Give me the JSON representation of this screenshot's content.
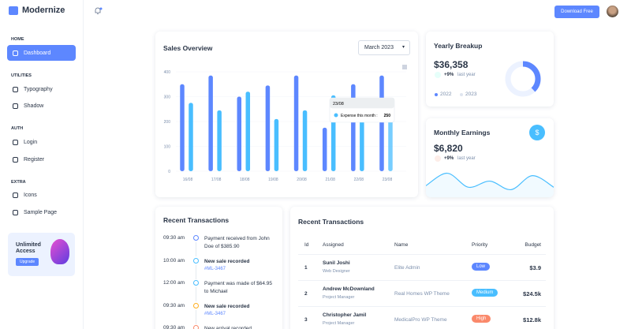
{
  "sidebar": {
    "logo": "Modernize",
    "sections": [
      {
        "title": "HOME",
        "items": [
          "Dashboard"
        ]
      },
      {
        "title": "UTILITIES",
        "items": [
          "Typography",
          "Shadow"
        ]
      },
      {
        "title": "AUTH",
        "items": [
          "Login",
          "Register"
        ]
      },
      {
        "title": "EXTRA",
        "items": [
          "Icons",
          "Sample Page"
        ]
      }
    ],
    "promo": {
      "title": "Unlimited Access",
      "button": "Upgrade"
    }
  },
  "header": {
    "button": "Download Free"
  },
  "sales_overview": {
    "title": "Sales Overview",
    "select": "March 2023",
    "chart": {
      "type": "bar",
      "categories": [
        "16/08",
        "17/08",
        "18/08",
        "19/08",
        "20/08",
        "21/08",
        "22/08",
        "23/08"
      ],
      "series": [
        {
          "color": "#5d87ff",
          "values": [
            350,
            385,
            300,
            345,
            385,
            175,
            350,
            385
          ]
        },
        {
          "name": "Expense this month :",
          "color": "#49beff",
          "values": [
            275,
            245,
            320,
            210,
            245,
            305,
            220,
            250
          ]
        }
      ],
      "ylim": [
        0,
        400
      ],
      "yticks": [
        0,
        100,
        200,
        300,
        400
      ]
    }
  },
  "yearly_breakup": {
    "title": "Yearly Breakup",
    "amount": "$36,358",
    "change": "+9%",
    "change_label": "last year",
    "chart": {
      "type": "donut",
      "categories": [
        "2022",
        "2023"
      ],
      "values": [
        38,
        62
      ],
      "colors": [
        "#5d87ff",
        "#ecf2ff"
      ]
    }
  },
  "monthly_earnings": {
    "title": "Monthly Earnings",
    "icon": "$",
    "amount": "$6,820",
    "change": "+9%",
    "change_label": "last year",
    "chart": {
      "type": "area",
      "values": [
        25,
        66,
        20,
        40,
        12,
        58,
        20
      ],
      "color": "#49beff",
      "ylim": [
        0,
        70
      ]
    }
  },
  "recent_transactions": {
    "title": "Recent Transactions",
    "items": [
      {
        "time": "09:30 am",
        "text": "Payment received from John Doe of $385.90",
        "color": "#5d87ff"
      },
      {
        "time": "10:00 am",
        "text": "New sale recorded",
        "link": "#ML-3467",
        "color": "#49beff"
      },
      {
        "time": "12:00 am",
        "text": "Payment was made of $64.95 to Michael",
        "color": "#49beff"
      },
      {
        "time": "09:30 am",
        "text": "New sale recorded",
        "link": "#ML-3467",
        "color": "#ffae1f"
      },
      {
        "time": "09:30 am",
        "text": "New arrival recorded",
        "color": "#fa896b"
      }
    ]
  },
  "transactions_table": {
    "title": "Recent Transactions",
    "columns": [
      "Id",
      "Assigned",
      "Name",
      "Priority",
      "Budget"
    ],
    "rows": [
      {
        "id": 1,
        "assigned": "Sunil Joshi",
        "role": "Web Designer",
        "name": "Elite Admin",
        "priority": "Low",
        "priority_color": "#5d87ff",
        "budget": "$3.9"
      },
      {
        "id": 2,
        "assigned": "Andrew McDownland",
        "role": "Project Manager",
        "name": "Real Homes WP Theme",
        "priority": "Medium",
        "priority_color": "#49beff",
        "budget": "$24.5k"
      },
      {
        "id": 3,
        "assigned": "Christopher Jamil",
        "role": "Project Manager",
        "name": "MedicalPro WP Theme",
        "priority": "High",
        "priority_color": "#fa896b",
        "budget": "$12.8k"
      }
    ]
  }
}
